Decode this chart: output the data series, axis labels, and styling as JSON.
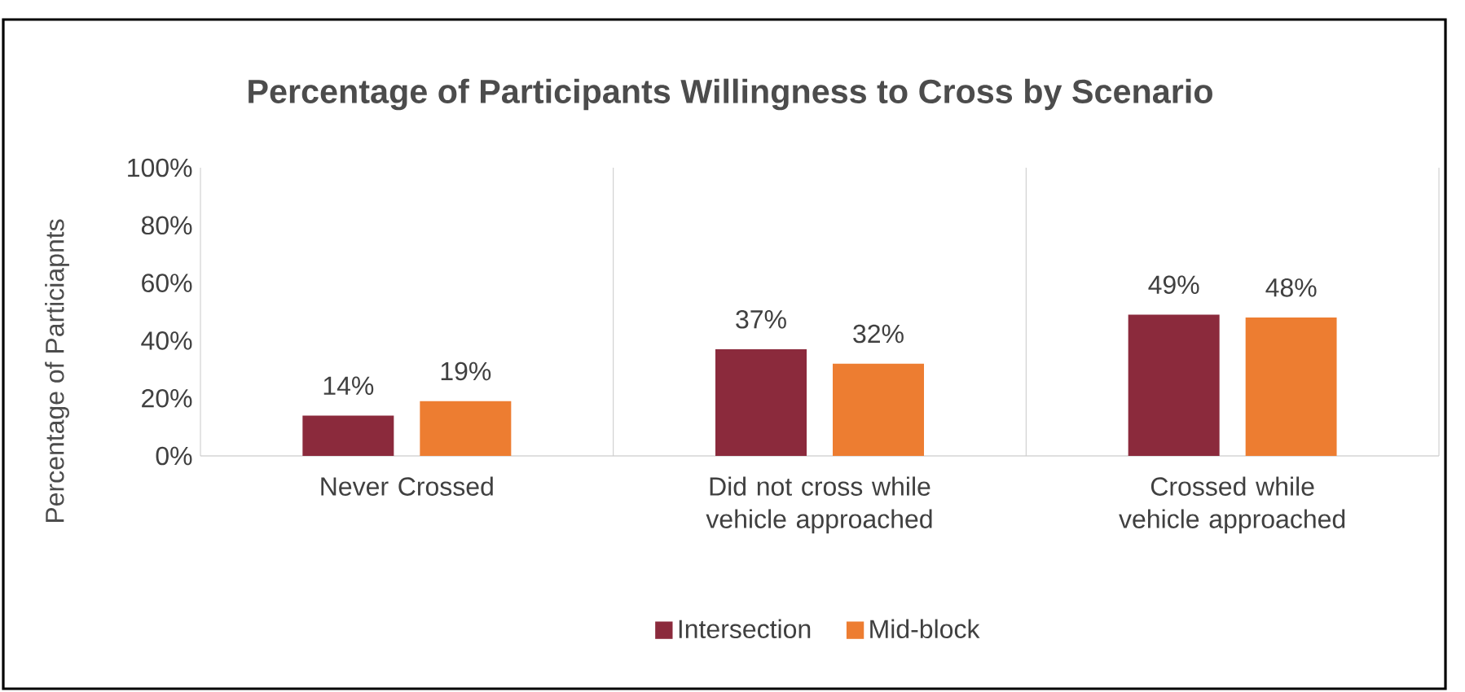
{
  "chart_data": {
    "type": "bar",
    "title": "Percentage of Participants Willingness to Cross by Scenario",
    "ylabel": "Percentage of Particiapnts",
    "categories": [
      "Never Crossed",
      "Did not cross while vehicle approached",
      "Crossed while vehicle approached"
    ],
    "series": [
      {
        "name": "Intersection",
        "color": "#8b2a3c",
        "values": [
          14,
          37,
          49
        ],
        "value_labels": [
          "14%",
          "37%",
          "49%"
        ]
      },
      {
        "name": "Mid-block",
        "color": "#ed7d31",
        "values": [
          19,
          32,
          48
        ],
        "value_labels": [
          "19%",
          "32%",
          "48%"
        ]
      }
    ],
    "ylim": [
      0,
      100
    ],
    "yticks": [
      {
        "value": 0,
        "label": "0%"
      },
      {
        "value": 20,
        "label": "20%"
      },
      {
        "value": 40,
        "label": "40%"
      },
      {
        "value": 60,
        "label": "60%"
      },
      {
        "value": 80,
        "label": "80%"
      },
      {
        "value": 100,
        "label": "100%"
      }
    ],
    "grid": "x",
    "legend": "bottom"
  }
}
